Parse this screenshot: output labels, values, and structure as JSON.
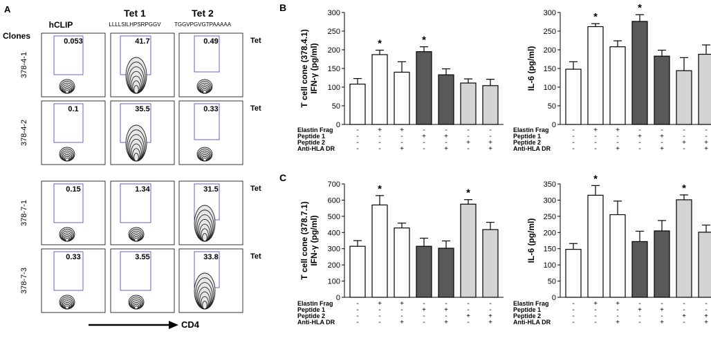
{
  "panel_a": {
    "letter": "A",
    "clones_label": "Clones",
    "col_headers": [
      "hCLIP",
      "Tet 1",
      "Tet 2"
    ],
    "col_sequences": [
      "",
      "LLLLSILHPSRPGGV",
      "TGGVPGVGTPAAAAA"
    ],
    "rows": [
      {
        "clone": "378-4-1",
        "values": [
          "0.053",
          "41.7",
          "0.49"
        ],
        "tet_label": "Tet"
      },
      {
        "clone": "378-4-2",
        "values": [
          "0.1",
          "35.5",
          "0.33"
        ],
        "tet_label": "Tet"
      },
      {
        "clone": "378-7-1",
        "values": [
          "0.15",
          "1.34",
          "31.5"
        ],
        "tet_label": "Tet"
      },
      {
        "clone": "378-7-3",
        "values": [
          "0.33",
          "3.55",
          "33.8"
        ],
        "tet_label": "Tet"
      }
    ],
    "x_axis_label": "CD4"
  },
  "colors": {
    "white_bar": "#ffffff",
    "dark_bar": "#595959",
    "light_bar": "#d3d3d3",
    "axis": "#000000",
    "gate": "#3b3bd6"
  },
  "condition_labels": [
    "Elastin Frag",
    "Peptide 1",
    "Peptide 2",
    "Anti-HLA DR"
  ],
  "chart_data": [
    {
      "type": "bar",
      "panel": "B",
      "title": "",
      "ylabel_line1": "T cell cone  (378.4.1)",
      "ylabel_line2": "IFN-γ (pg/ml)",
      "ylim": [
        0,
        300
      ],
      "yticks": [
        "0",
        "50",
        "100",
        "150",
        "200",
        "250",
        "300"
      ],
      "values": [
        108,
        187,
        140,
        195,
        133,
        111,
        104
      ],
      "errors": [
        15,
        12,
        28,
        13,
        16,
        11,
        17
      ],
      "bar_fill": [
        "white",
        "white",
        "white",
        "dark",
        "dark",
        "light",
        "light"
      ],
      "significant": [
        "",
        "*",
        "",
        "*",
        "",
        "",
        ""
      ],
      "conditions": [
        [
          "-",
          "+",
          "+",
          "-",
          "-",
          "-",
          "-"
        ],
        [
          "-",
          "-",
          "-",
          "+",
          "+",
          "-",
          "-"
        ],
        [
          "-",
          "-",
          "-",
          "-",
          "-",
          "+",
          "+"
        ],
        [
          "-",
          "-",
          "+",
          "-",
          "+",
          "-",
          "+"
        ]
      ]
    },
    {
      "type": "bar",
      "panel": "B",
      "title": "",
      "ylabel_line1": "IL-6 (pg/ml)",
      "ylabel_line2": "",
      "ylim": [
        0,
        300
      ],
      "yticks": [
        "0",
        "50",
        "100",
        "150",
        "200",
        "250",
        "300"
      ],
      "values": [
        148,
        262,
        208,
        276,
        183,
        144,
        188
      ],
      "errors": [
        20,
        8,
        16,
        18,
        16,
        35,
        25
      ],
      "bar_fill": [
        "white",
        "white",
        "white",
        "dark",
        "dark",
        "light",
        "light"
      ],
      "significant": [
        "",
        "*",
        "",
        "*",
        "",
        "",
        ""
      ],
      "conditions": [
        [
          "-",
          "+",
          "+",
          "-",
          "-",
          "-",
          "-"
        ],
        [
          "-",
          "-",
          "-",
          "+",
          "+",
          "-",
          "-"
        ],
        [
          "-",
          "-",
          "-",
          "-",
          "-",
          "+",
          "+"
        ],
        [
          "-",
          "-",
          "+",
          "-",
          "+",
          "-",
          "+"
        ]
      ]
    },
    {
      "type": "bar",
      "panel": "C",
      "title": "",
      "ylabel_line1": "T cell cone  (378.7.1)",
      "ylabel_line2": "IFN-γ (pg/ml)",
      "ylim": [
        0,
        700
      ],
      "yticks": [
        "0",
        "100",
        "200",
        "300",
        "400",
        "500",
        "600",
        "700"
      ],
      "values": [
        315,
        570,
        428,
        315,
        303,
        575,
        418
      ],
      "errors": [
        35,
        58,
        30,
        50,
        45,
        28,
        45
      ],
      "bar_fill": [
        "white",
        "white",
        "white",
        "dark",
        "dark",
        "light",
        "light"
      ],
      "significant": [
        "",
        "*",
        "",
        "",
        "",
        "*",
        ""
      ],
      "conditions": [
        [
          "-",
          "+",
          "+",
          "-",
          "-",
          "-",
          "-"
        ],
        [
          "-",
          "-",
          "-",
          "+",
          "+",
          "-",
          "-"
        ],
        [
          "-",
          "-",
          "-",
          "-",
          "-",
          "+",
          "+"
        ],
        [
          "-",
          "-",
          "+",
          "-",
          "+",
          "-",
          "+"
        ]
      ]
    },
    {
      "type": "bar",
      "panel": "C",
      "title": "",
      "ylabel_line1": "IL-6 (pg/ml)",
      "ylabel_line2": "",
      "ylim": [
        0,
        350
      ],
      "yticks": [
        "0",
        "50",
        "100",
        "150",
        "200",
        "250",
        "300",
        "350"
      ],
      "values": [
        148,
        315,
        255,
        172,
        205,
        301,
        201
      ],
      "errors": [
        18,
        30,
        42,
        32,
        32,
        15,
        22
      ],
      "bar_fill": [
        "white",
        "white",
        "white",
        "dark",
        "dark",
        "light",
        "light"
      ],
      "significant": [
        "",
        "*",
        "",
        "",
        "",
        "*",
        ""
      ],
      "conditions": [
        [
          "-",
          "+",
          "+",
          "-",
          "-",
          "-",
          "-"
        ],
        [
          "-",
          "-",
          "-",
          "+",
          "+",
          "-",
          "-"
        ],
        [
          "-",
          "-",
          "-",
          "-",
          "-",
          "+",
          "+"
        ],
        [
          "-",
          "-",
          "+",
          "-",
          "+",
          "-",
          "+"
        ]
      ]
    }
  ],
  "panel_letters": {
    "b": "B",
    "c": "C"
  }
}
